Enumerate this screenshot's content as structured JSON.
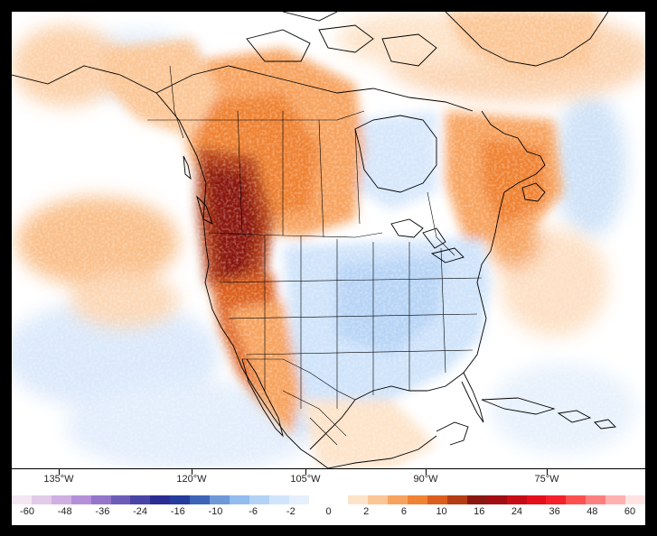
{
  "map": {
    "type": "temperature-anomaly-map",
    "region": "North America",
    "colors": {
      "ocean": "#ffffff",
      "coast": "#000000",
      "background": "#000000"
    }
  },
  "longitude_labels": [
    "135°W",
    "120°W",
    "105°W",
    "90°W",
    "75°W"
  ],
  "colorbar": {
    "labels": [
      "-60",
      "-48",
      "-36",
      "-24",
      "-16",
      "-10",
      "-6",
      "-2",
      "0",
      "2",
      "6",
      "10",
      "16",
      "24",
      "36",
      "48",
      "60"
    ],
    "colors": [
      "#f4e6f2",
      "#e2cbe9",
      "#cfb0e2",
      "#b590da",
      "#9375cb",
      "#6c5cb8",
      "#4a44a6",
      "#2b2d94",
      "#263b9e",
      "#3e64b8",
      "#6f98d9",
      "#93bbef",
      "#b3d3f6",
      "#d1e4fb",
      "#e6f0fc",
      "#ffffff",
      "#ffffff",
      "#fde3c9",
      "#fbc696",
      "#f7a35f",
      "#ef8233",
      "#db5e1e",
      "#b43d14",
      "#8a1810",
      "#a10d12",
      "#c70c15",
      "#e3101c",
      "#f4202a",
      "#ff5050",
      "#ff7f7f",
      "#ffb0b0",
      "#ffe2e2"
    ]
  }
}
